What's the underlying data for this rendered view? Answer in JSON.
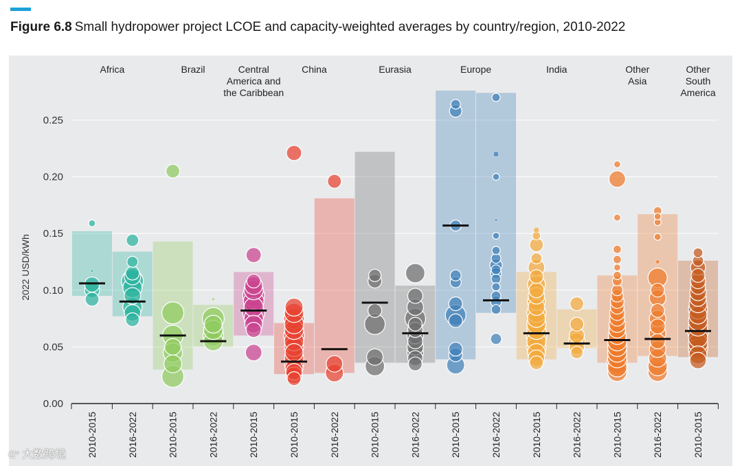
{
  "figure": {
    "label": "Figure 6.8",
    "title": "Small hydropower project LCOE and capacity-weighted averages by country/region, 2010-2022",
    "accent_color": "#1ba1d9"
  },
  "watermark": {
    "icon": "weibo-icon",
    "text": "大数跨境"
  },
  "chart_data": {
    "type": "bar",
    "title": "Small hydropower project LCOE and capacity-weighted averages by country/region, 2010-2022",
    "ylabel": "2022 USD/kWh",
    "xlabel": "",
    "ylim": [
      0,
      0.28
    ],
    "yticks": [
      0.0,
      0.05,
      0.1,
      0.15,
      0.2,
      0.25
    ],
    "ytick_labels": [
      "0.00",
      "0.05",
      "0.10",
      "0.15",
      "0.20",
      "0.25"
    ],
    "grid": true,
    "periods": [
      "2010-2015",
      "2016-2022"
    ],
    "regions": [
      {
        "name": "Africa",
        "lines": [
          "Africa"
        ],
        "color": "#2bb3a0",
        "columns": [
          0,
          1
        ]
      },
      {
        "name": "Brazil",
        "lines": [
          "Brazil"
        ],
        "color": "#8fcb5e",
        "columns": [
          2,
          3
        ]
      },
      {
        "name": "Central America and the Caribbean",
        "lines": [
          "Central",
          "America and",
          "the Caribbean"
        ],
        "color": "#c9438f",
        "columns": [
          4
        ]
      },
      {
        "name": "China",
        "lines": [
          "China"
        ],
        "color": "#e8412f",
        "columns": [
          5,
          6
        ]
      },
      {
        "name": "Eurasia",
        "lines": [
          "Eurasia"
        ],
        "color": "#6e6e6e",
        "columns": [
          7,
          8
        ]
      },
      {
        "name": "Europe",
        "lines": [
          "Europe"
        ],
        "color": "#3f7fb9",
        "columns": [
          9,
          10
        ]
      },
      {
        "name": "India",
        "lines": [
          "India"
        ],
        "color": "#f2a93b",
        "columns": [
          11,
          12
        ]
      },
      {
        "name": "Other Asia",
        "lines": [
          "Other",
          "Asia"
        ],
        "color": "#ee7a2a",
        "columns": [
          13,
          14
        ]
      },
      {
        "name": "Other South America",
        "lines": [
          "Other",
          "South",
          "America"
        ],
        "color": "#c55a1d",
        "columns": [
          15
        ]
      }
    ],
    "columns": [
      {
        "region": "Africa",
        "period": "2010-2015",
        "range": [
          0.095,
          0.152
        ],
        "weighted_average": 0.106,
        "points": [
          {
            "v": 0.092,
            "s": 0.5
          },
          {
            "v": 0.1,
            "s": 0.55
          },
          {
            "v": 0.105,
            "s": 0.55
          },
          {
            "v": 0.117,
            "s": 0.1
          },
          {
            "v": 0.159,
            "s": 0.25
          }
        ]
      },
      {
        "region": "Africa",
        "period": "2016-2022",
        "range": [
          0.077,
          0.134
        ],
        "weighted_average": 0.09,
        "points": [
          {
            "v": 0.074,
            "s": 0.5
          },
          {
            "v": 0.08,
            "s": 0.6
          },
          {
            "v": 0.085,
            "s": 0.7
          },
          {
            "v": 0.095,
            "s": 0.6
          },
          {
            "v": 0.102,
            "s": 0.7
          },
          {
            "v": 0.108,
            "s": 0.8
          },
          {
            "v": 0.112,
            "s": 0.6
          },
          {
            "v": 0.115,
            "s": 0.5
          },
          {
            "v": 0.125,
            "s": 0.4
          },
          {
            "v": 0.144,
            "s": 0.45
          }
        ]
      },
      {
        "region": "Brazil",
        "period": "2010-2015",
        "range": [
          0.03,
          0.143
        ],
        "weighted_average": 0.06,
        "points": [
          {
            "v": 0.024,
            "s": 0.8
          },
          {
            "v": 0.035,
            "s": 0.65
          },
          {
            "v": 0.045,
            "s": 0.7
          },
          {
            "v": 0.05,
            "s": 0.6
          },
          {
            "v": 0.06,
            "s": 0.75
          },
          {
            "v": 0.08,
            "s": 0.8
          },
          {
            "v": 0.205,
            "s": 0.5
          }
        ]
      },
      {
        "region": "Brazil",
        "period": "2016-2022",
        "range": [
          0.05,
          0.087
        ],
        "weighted_average": 0.055,
        "points": [
          {
            "v": 0.055,
            "s": 0.7
          },
          {
            "v": 0.06,
            "s": 0.75
          },
          {
            "v": 0.065,
            "s": 0.7
          },
          {
            "v": 0.07,
            "s": 0.65
          },
          {
            "v": 0.075,
            "s": 0.8
          },
          {
            "v": 0.092,
            "s": 0.1
          }
        ]
      },
      {
        "region": "Central America and the Caribbean",
        "period": "2010-2015",
        "range": [
          0.06,
          0.116
        ],
        "weighted_average": 0.082,
        "points": [
          {
            "v": 0.045,
            "s": 0.6
          },
          {
            "v": 0.065,
            "s": 0.55
          },
          {
            "v": 0.07,
            "s": 0.65
          },
          {
            "v": 0.075,
            "s": 0.7
          },
          {
            "v": 0.08,
            "s": 0.8
          },
          {
            "v": 0.085,
            "s": 0.7
          },
          {
            "v": 0.09,
            "s": 0.75
          },
          {
            "v": 0.095,
            "s": 0.8
          },
          {
            "v": 0.1,
            "s": 0.7
          },
          {
            "v": 0.104,
            "s": 0.65
          },
          {
            "v": 0.108,
            "s": 0.5
          },
          {
            "v": 0.131,
            "s": 0.55
          }
        ]
      },
      {
        "region": "China",
        "period": "2010-2015",
        "range": [
          0.026,
          0.071
        ],
        "weighted_average": 0.037,
        "points": [
          {
            "v": 0.022,
            "s": 0.5
          },
          {
            "v": 0.025,
            "s": 0.6
          },
          {
            "v": 0.028,
            "s": 0.6
          },
          {
            "v": 0.031,
            "s": 0.65
          },
          {
            "v": 0.035,
            "s": 0.7
          },
          {
            "v": 0.04,
            "s": 0.7
          },
          {
            "v": 0.045,
            "s": 0.65
          },
          {
            "v": 0.05,
            "s": 0.7
          },
          {
            "v": 0.055,
            "s": 0.7
          },
          {
            "v": 0.06,
            "s": 0.75
          },
          {
            "v": 0.065,
            "s": 0.7
          },
          {
            "v": 0.07,
            "s": 0.7
          },
          {
            "v": 0.075,
            "s": 0.75
          },
          {
            "v": 0.08,
            "s": 0.7
          },
          {
            "v": 0.085,
            "s": 0.65
          },
          {
            "v": 0.221,
            "s": 0.55
          }
        ]
      },
      {
        "region": "China",
        "period": "2016-2022",
        "range": [
          0.027,
          0.181
        ],
        "weighted_average": 0.048,
        "points": [
          {
            "v": 0.027,
            "s": 0.65
          },
          {
            "v": 0.035,
            "s": 0.6
          },
          {
            "v": 0.196,
            "s": 0.5
          }
        ]
      },
      {
        "region": "Eurasia",
        "period": "2010-2015",
        "range": [
          0.036,
          0.222
        ],
        "weighted_average": 0.089,
        "points": [
          {
            "v": 0.033,
            "s": 0.7
          },
          {
            "v": 0.041,
            "s": 0.6
          },
          {
            "v": 0.07,
            "s": 0.75
          },
          {
            "v": 0.082,
            "s": 0.5
          },
          {
            "v": 0.108,
            "s": 0.5
          },
          {
            "v": 0.113,
            "s": 0.45
          }
        ]
      },
      {
        "region": "Eurasia",
        "period": "2016-2022",
        "range": [
          0.036,
          0.104
        ],
        "weighted_average": 0.062,
        "points": [
          {
            "v": 0.035,
            "s": 0.5
          },
          {
            "v": 0.04,
            "s": 0.55
          },
          {
            "v": 0.045,
            "s": 0.6
          },
          {
            "v": 0.05,
            "s": 0.6
          },
          {
            "v": 0.055,
            "s": 0.55
          },
          {
            "v": 0.06,
            "s": 0.6
          },
          {
            "v": 0.065,
            "s": 0.55
          },
          {
            "v": 0.07,
            "s": 0.5
          },
          {
            "v": 0.075,
            "s": 0.75
          },
          {
            "v": 0.085,
            "s": 0.6
          },
          {
            "v": 0.095,
            "s": 0.55
          },
          {
            "v": 0.115,
            "s": 0.7
          }
        ]
      },
      {
        "region": "Europe",
        "period": "2010-2015",
        "range": [
          0.039,
          0.276
        ],
        "weighted_average": 0.157,
        "points": [
          {
            "v": 0.034,
            "s": 0.65
          },
          {
            "v": 0.043,
            "s": 0.5
          },
          {
            "v": 0.048,
            "s": 0.5
          },
          {
            "v": 0.073,
            "s": 0.5
          },
          {
            "v": 0.078,
            "s": 0.75
          },
          {
            "v": 0.088,
            "s": 0.5
          },
          {
            "v": 0.107,
            "s": 0.4
          },
          {
            "v": 0.113,
            "s": 0.4
          },
          {
            "v": 0.157,
            "s": 0.4
          },
          {
            "v": 0.258,
            "s": 0.45
          },
          {
            "v": 0.264,
            "s": 0.35
          }
        ]
      },
      {
        "region": "Europe",
        "period": "2016-2022",
        "range": [
          0.08,
          0.274
        ],
        "weighted_average": 0.091,
        "points": [
          {
            "v": 0.057,
            "s": 0.4
          },
          {
            "v": 0.083,
            "s": 0.35
          },
          {
            "v": 0.09,
            "s": 0.4
          },
          {
            "v": 0.095,
            "s": 0.35
          },
          {
            "v": 0.103,
            "s": 0.3
          },
          {
            "v": 0.11,
            "s": 0.35
          },
          {
            "v": 0.115,
            "s": 0.4
          },
          {
            "v": 0.118,
            "s": 0.35
          },
          {
            "v": 0.122,
            "s": 0.45
          },
          {
            "v": 0.128,
            "s": 0.35
          },
          {
            "v": 0.135,
            "s": 0.3
          },
          {
            "v": 0.148,
            "s": 0.25
          },
          {
            "v": 0.162,
            "s": 0.1
          },
          {
            "v": 0.178,
            "s": 0.05
          },
          {
            "v": 0.185,
            "s": 0.05
          },
          {
            "v": 0.2,
            "s": 0.25
          },
          {
            "v": 0.205,
            "s": 0.05
          },
          {
            "v": 0.22,
            "s": 0.2
          },
          {
            "v": 0.27,
            "s": 0.3
          }
        ]
      },
      {
        "region": "India",
        "period": "2010-2015",
        "range": [
          0.039,
          0.116
        ],
        "weighted_average": 0.062,
        "points": [
          {
            "v": 0.036,
            "s": 0.5
          },
          {
            "v": 0.04,
            "s": 0.6
          },
          {
            "v": 0.045,
            "s": 0.65
          },
          {
            "v": 0.05,
            "s": 0.7
          },
          {
            "v": 0.055,
            "s": 0.7
          },
          {
            "v": 0.06,
            "s": 0.75
          },
          {
            "v": 0.065,
            "s": 0.7
          },
          {
            "v": 0.07,
            "s": 0.7
          },
          {
            "v": 0.075,
            "s": 0.65
          },
          {
            "v": 0.08,
            "s": 0.7
          },
          {
            "v": 0.085,
            "s": 0.6
          },
          {
            "v": 0.09,
            "s": 0.65
          },
          {
            "v": 0.095,
            "s": 0.6
          },
          {
            "v": 0.1,
            "s": 0.55
          },
          {
            "v": 0.105,
            "s": 0.65
          },
          {
            "v": 0.112,
            "s": 0.5
          },
          {
            "v": 0.12,
            "s": 0.6
          },
          {
            "v": 0.128,
            "s": 0.4
          },
          {
            "v": 0.14,
            "s": 0.5
          },
          {
            "v": 0.148,
            "s": 0.3
          },
          {
            "v": 0.153,
            "s": 0.2
          }
        ]
      },
      {
        "region": "India",
        "period": "2016-2022",
        "range": [
          0.049,
          0.083
        ],
        "weighted_average": 0.053,
        "points": [
          {
            "v": 0.045,
            "s": 0.45
          },
          {
            "v": 0.05,
            "s": 0.55
          },
          {
            "v": 0.055,
            "s": 0.6
          },
          {
            "v": 0.06,
            "s": 0.55
          },
          {
            "v": 0.07,
            "s": 0.5
          },
          {
            "v": 0.088,
            "s": 0.5
          }
        ]
      },
      {
        "region": "Other Asia",
        "period": "2010-2015",
        "range": [
          0.036,
          0.113
        ],
        "weighted_average": 0.056,
        "points": [
          {
            "v": 0.028,
            "s": 0.7
          },
          {
            "v": 0.032,
            "s": 0.7
          },
          {
            "v": 0.036,
            "s": 0.75
          },
          {
            "v": 0.04,
            "s": 0.7
          },
          {
            "v": 0.045,
            "s": 0.7
          },
          {
            "v": 0.05,
            "s": 0.7
          },
          {
            "v": 0.055,
            "s": 0.7
          },
          {
            "v": 0.06,
            "s": 0.65
          },
          {
            "v": 0.065,
            "s": 0.6
          },
          {
            "v": 0.07,
            "s": 0.6
          },
          {
            "v": 0.075,
            "s": 0.55
          },
          {
            "v": 0.08,
            "s": 0.55
          },
          {
            "v": 0.085,
            "s": 0.5
          },
          {
            "v": 0.09,
            "s": 0.5
          },
          {
            "v": 0.095,
            "s": 0.45
          },
          {
            "v": 0.1,
            "s": 0.4
          },
          {
            "v": 0.108,
            "s": 0.35
          },
          {
            "v": 0.113,
            "s": 0.3
          },
          {
            "v": 0.12,
            "s": 0.25
          },
          {
            "v": 0.127,
            "s": 0.3
          },
          {
            "v": 0.136,
            "s": 0.3
          },
          {
            "v": 0.164,
            "s": 0.25
          },
          {
            "v": 0.198,
            "s": 0.6
          },
          {
            "v": 0.211,
            "s": 0.25
          }
        ]
      },
      {
        "region": "Other Asia",
        "period": "2016-2022",
        "range": [
          0.042,
          0.167
        ],
        "weighted_average": 0.057,
        "points": [
          {
            "v": 0.028,
            "s": 0.7
          },
          {
            "v": 0.033,
            "s": 0.7
          },
          {
            "v": 0.04,
            "s": 0.65
          },
          {
            "v": 0.048,
            "s": 0.6
          },
          {
            "v": 0.055,
            "s": 0.55
          },
          {
            "v": 0.062,
            "s": 0.6
          },
          {
            "v": 0.068,
            "s": 0.55
          },
          {
            "v": 0.075,
            "s": 0.6
          },
          {
            "v": 0.082,
            "s": 0.5
          },
          {
            "v": 0.093,
            "s": 0.6
          },
          {
            "v": 0.1,
            "s": 0.5
          },
          {
            "v": 0.111,
            "s": 0.7
          },
          {
            "v": 0.125,
            "s": 0.15
          },
          {
            "v": 0.147,
            "s": 0.25
          },
          {
            "v": 0.16,
            "s": 0.25
          },
          {
            "v": 0.165,
            "s": 0.25
          },
          {
            "v": 0.17,
            "s": 0.3
          }
        ]
      },
      {
        "region": "Other South America",
        "period": "2010-2015",
        "range": [
          0.041,
          0.126
        ],
        "weighted_average": 0.064,
        "points": [
          {
            "v": 0.038,
            "s": 0.6
          },
          {
            "v": 0.043,
            "s": 0.65
          },
          {
            "v": 0.048,
            "s": 0.7
          },
          {
            "v": 0.053,
            "s": 0.7
          },
          {
            "v": 0.058,
            "s": 0.7
          },
          {
            "v": 0.063,
            "s": 0.75
          },
          {
            "v": 0.068,
            "s": 0.7
          },
          {
            "v": 0.073,
            "s": 0.7
          },
          {
            "v": 0.078,
            "s": 0.65
          },
          {
            "v": 0.083,
            "s": 0.7
          },
          {
            "v": 0.088,
            "s": 0.65
          },
          {
            "v": 0.093,
            "s": 0.6
          },
          {
            "v": 0.098,
            "s": 0.6
          },
          {
            "v": 0.103,
            "s": 0.55
          },
          {
            "v": 0.108,
            "s": 0.55
          },
          {
            "v": 0.113,
            "s": 0.5
          },
          {
            "v": 0.12,
            "s": 0.55
          },
          {
            "v": 0.126,
            "s": 0.4
          },
          {
            "v": 0.133,
            "s": 0.35
          }
        ]
      }
    ]
  }
}
